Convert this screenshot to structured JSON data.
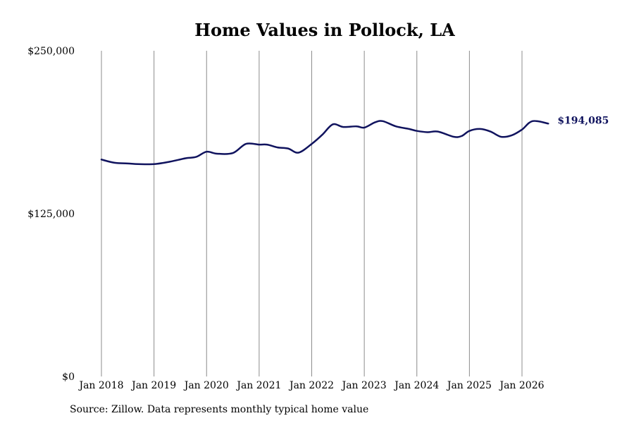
{
  "chart_data": {
    "type": "line",
    "title": "Home Values in Pollock, LA",
    "xlabel": "",
    "ylabel": "",
    "ylim": [
      0,
      250000
    ],
    "y_ticks": [
      {
        "value": 0,
        "label": "$0"
      },
      {
        "value": 125000,
        "label": "$125,000"
      },
      {
        "value": 250000,
        "label": "$250,000"
      }
    ],
    "x_ticks": [
      {
        "value": 2018.0,
        "label": "Jan 2018"
      },
      {
        "value": 2019.0,
        "label": "Jan 2019"
      },
      {
        "value": 2020.0,
        "label": "Jan 2020"
      },
      {
        "value": 2021.0,
        "label": "Jan 2021"
      },
      {
        "value": 2022.0,
        "label": "Jan 2022"
      },
      {
        "value": 2023.0,
        "label": "Jan 2023"
      },
      {
        "value": 2024.0,
        "label": "Jan 2024"
      },
      {
        "value": 2025.0,
        "label": "Jan 2025"
      },
      {
        "value": 2026.0,
        "label": "Jan 2026"
      }
    ],
    "xlim": [
      2018.0,
      2026.5
    ],
    "grid": {
      "vertical": true,
      "horizontal": false
    },
    "series": [
      {
        "color": "#10135e",
        "points": [
          [
            2018.0,
            166500
          ],
          [
            2018.25,
            164000
          ],
          [
            2018.5,
            163500
          ],
          [
            2018.7,
            163000
          ],
          [
            2019.0,
            163000
          ],
          [
            2019.3,
            164800
          ],
          [
            2019.6,
            167500
          ],
          [
            2019.8,
            168500
          ],
          [
            2020.0,
            172500
          ],
          [
            2020.2,
            171000
          ],
          [
            2020.5,
            171500
          ],
          [
            2020.75,
            178500
          ],
          [
            2021.0,
            178000
          ],
          [
            2021.15,
            178000
          ],
          [
            2021.35,
            175800
          ],
          [
            2021.55,
            175000
          ],
          [
            2021.75,
            171800
          ],
          [
            2022.0,
            178500
          ],
          [
            2022.2,
            185500
          ],
          [
            2022.4,
            193500
          ],
          [
            2022.6,
            191500
          ],
          [
            2022.85,
            192000
          ],
          [
            2023.0,
            191000
          ],
          [
            2023.2,
            195000
          ],
          [
            2023.35,
            196000
          ],
          [
            2023.6,
            192000
          ],
          [
            2023.85,
            190000
          ],
          [
            2024.0,
            188500
          ],
          [
            2024.2,
            187500
          ],
          [
            2024.4,
            188000
          ],
          [
            2024.7,
            184000
          ],
          [
            2024.85,
            184500
          ],
          [
            2025.0,
            188500
          ],
          [
            2025.2,
            190000
          ],
          [
            2025.4,
            188000
          ],
          [
            2025.6,
            184000
          ],
          [
            2025.8,
            185000
          ],
          [
            2026.0,
            189500
          ],
          [
            2026.2,
            196000
          ],
          [
            2026.5,
            194085
          ]
        ]
      }
    ],
    "end_label": "$194,085"
  },
  "caption": {
    "source": "Source: Zillow. Data represents monthly typical home value"
  }
}
